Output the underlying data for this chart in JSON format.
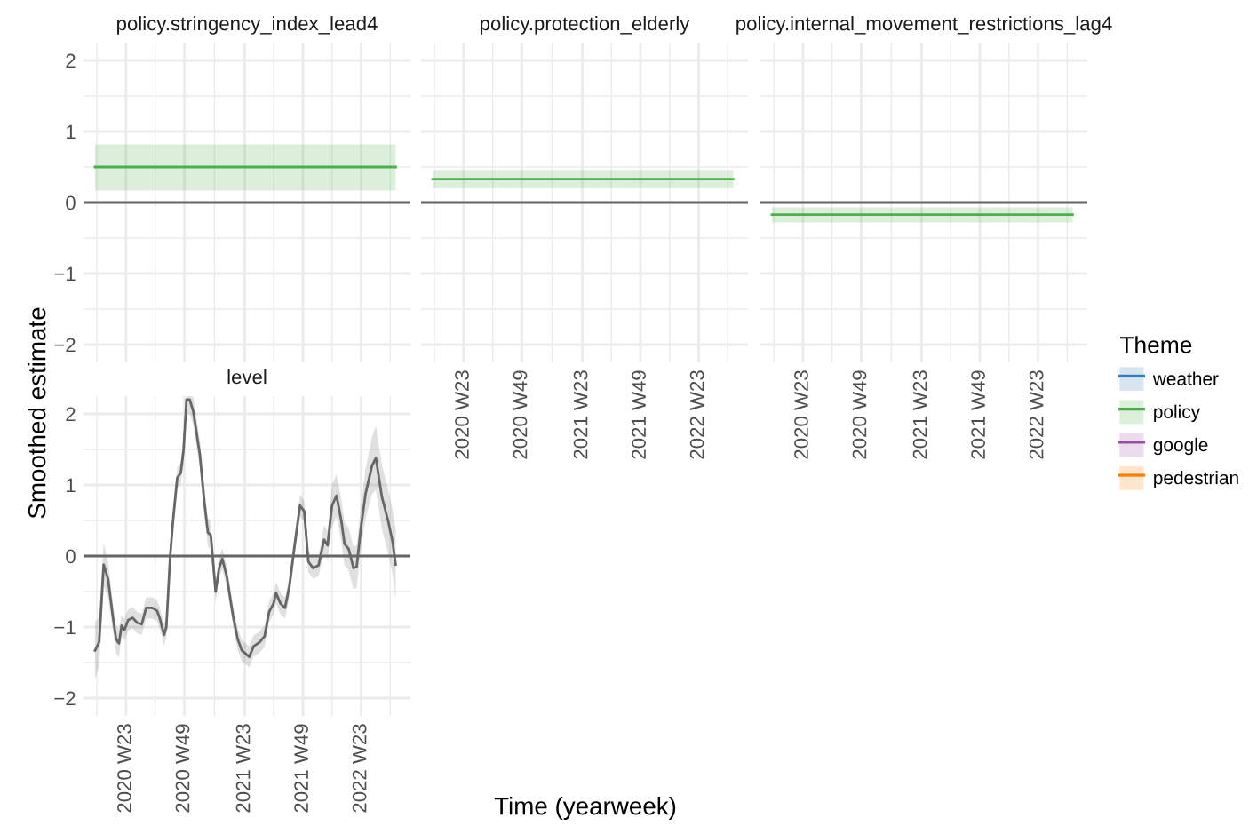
{
  "chart_data": [
    {
      "type": "line",
      "title": "policy.stringency_index_lead4",
      "xlim": [
        "2020-01-20",
        "2022-11-07"
      ],
      "ylim": [
        -2.25,
        2.25
      ],
      "xticks": [
        "2020-06-01",
        "2020-11-30",
        "2021-06-07",
        "2021-12-06",
        "2022-06-06"
      ],
      "yticks": [
        -2,
        -1,
        0,
        1,
        2
      ],
      "grid": true,
      "tick_labels": "y",
      "ref_lines": [
        {
          "axis": "y",
          "value": 0,
          "color": "#666666"
        }
      ],
      "series": [
        {
          "color": "#4daf4a",
          "x": [
            "2020-02-25",
            "2022-09-22"
          ],
          "values": [
            0.5,
            0.5
          ],
          "lower": [
            0.17,
            0.17
          ],
          "upper": [
            0.82,
            0.82
          ]
        }
      ]
    },
    {
      "type": "line",
      "title": "policy.protection_elderly",
      "xlim": [
        "2020-01-20",
        "2022-11-07"
      ],
      "ylim": [
        -2.25,
        2.25
      ],
      "xticks": [
        {
          "value": "2020-06-01",
          "label": "2020 W23"
        },
        {
          "value": "2020-11-30",
          "label": "2020 W49"
        },
        {
          "value": "2021-06-07",
          "label": "2021 W23"
        },
        {
          "value": "2021-12-06",
          "label": "2021 W49"
        },
        {
          "value": "2022-06-06",
          "label": "2022 W23"
        }
      ],
      "yticks": [
        -2,
        -1,
        0,
        1,
        2
      ],
      "grid": true,
      "tick_labels": "x",
      "ref_lines": [
        {
          "axis": "y",
          "value": 0,
          "color": "#666666"
        }
      ],
      "series": [
        {
          "color": "#4daf4a",
          "x": [
            "2020-02-25",
            "2022-09-22"
          ],
          "values": [
            0.33,
            0.33
          ],
          "lower": [
            0.2,
            0.2
          ],
          "upper": [
            0.46,
            0.46
          ]
        }
      ]
    },
    {
      "type": "line",
      "title": "policy.internal_movement_restrictions_lag4",
      "xlim": [
        "2020-01-20",
        "2022-11-07"
      ],
      "ylim": [
        -2.25,
        2.25
      ],
      "xticks": [
        {
          "value": "2020-06-01",
          "label": "2020 W23"
        },
        {
          "value": "2020-11-30",
          "label": "2020 W49"
        },
        {
          "value": "2021-06-07",
          "label": "2021 W23"
        },
        {
          "value": "2021-12-06",
          "label": "2021 W49"
        },
        {
          "value": "2022-06-06",
          "label": "2022 W23"
        }
      ],
      "yticks": [
        -2,
        -1,
        0,
        1,
        2
      ],
      "grid": true,
      "tick_labels": "x",
      "legend": "right",
      "legend_title": "Theme",
      "ref_lines": [
        {
          "axis": "y",
          "value": 0,
          "color": "#666666"
        }
      ],
      "series": [
        {
          "name": "weather",
          "color": "#377eb8",
          "values": [
            null,
            null
          ]
        },
        {
          "name": "policy",
          "color": "#4daf4a",
          "x": [
            "2020-02-25",
            "2022-09-22"
          ],
          "values": [
            -0.17,
            -0.17
          ],
          "lower": [
            -0.28,
            -0.28
          ],
          "upper": [
            -0.07,
            -0.07
          ]
        },
        {
          "name": "google",
          "color": "#984ea3",
          "values": [
            null,
            null
          ]
        },
        {
          "name": "pedestrian",
          "color": "#ff7f00",
          "values": [
            null,
            null
          ]
        }
      ]
    },
    {
      "type": "line",
      "title": "level",
      "xlabel": "Time (yearweek)",
      "ylabel": "Smoothed estimate",
      "xlim": [
        "2020-01-20",
        "2022-11-07"
      ],
      "ylim": [
        -2.25,
        2.25
      ],
      "xticks": [
        {
          "value": "2020-06-01",
          "label": "2020 W23"
        },
        {
          "value": "2020-11-30",
          "label": "2020 W49"
        },
        {
          "value": "2021-06-07",
          "label": "2021 W23"
        },
        {
          "value": "2021-12-06",
          "label": "2021 W49"
        },
        {
          "value": "2022-06-06",
          "label": "2022 W23"
        }
      ],
      "yticks": [
        -2,
        -1,
        0,
        1,
        2
      ],
      "grid": true,
      "ref_lines": [
        {
          "axis": "y",
          "value": 0,
          "color": "#666666"
        }
      ],
      "series": [
        {
          "color": "#666666",
          "x": [
            "2020-02-25",
            "2020-03-09",
            "2020-03-23",
            "2020-04-06",
            "2020-04-20",
            "2020-05-01",
            "2020-05-10",
            "2020-05-18",
            "2020-05-27",
            "2020-06-08",
            "2020-06-22",
            "2020-07-06",
            "2020-07-20",
            "2020-08-03",
            "2020-08-22",
            "2020-09-06",
            "2020-09-14",
            "2020-09-28",
            "2020-10-05",
            "2020-10-17",
            "2020-10-26",
            "2020-11-08",
            "2020-11-19",
            "2020-11-28",
            "2020-12-07",
            "2020-12-17",
            "2020-12-28",
            "2021-01-18",
            "2021-02-01",
            "2021-02-12",
            "2021-02-21",
            "2021-03-08",
            "2021-03-19",
            "2021-03-29",
            "2021-04-12",
            "2021-05-01",
            "2021-05-16",
            "2021-05-29",
            "2021-06-21",
            "2021-07-05",
            "2021-07-24",
            "2021-08-08",
            "2021-08-22",
            "2021-09-05",
            "2021-09-13",
            "2021-09-27",
            "2021-10-11",
            "2021-10-25",
            "2021-11-08",
            "2021-11-27",
            "2021-12-10",
            "2021-12-23",
            "2022-01-07",
            "2022-01-24",
            "2022-02-10",
            "2022-02-21",
            "2022-03-07",
            "2022-03-21",
            "2022-04-05",
            "2022-04-15",
            "2022-04-28",
            "2022-05-13",
            "2022-05-23",
            "2022-06-06",
            "2022-06-20",
            "2022-07-10",
            "2022-07-22",
            "2022-08-10",
            "2022-08-29",
            "2022-09-12",
            "2022-09-22"
          ],
          "values": [
            -1.33,
            -1.21,
            -0.12,
            -0.33,
            -0.83,
            -1.17,
            -1.23,
            -0.98,
            -1.04,
            -0.9,
            -0.87,
            -0.94,
            -0.96,
            -0.73,
            -0.73,
            -0.77,
            -0.87,
            -1.11,
            -1.0,
            0,
            0.5,
            1.1,
            1.17,
            1.5,
            2.2,
            2.2,
            2.04,
            1.42,
            0.75,
            0.33,
            0.29,
            -0.5,
            -0.17,
            -0.04,
            -0.29,
            -0.83,
            -1.17,
            -1.33,
            -1.42,
            -1.27,
            -1.21,
            -1.13,
            -0.79,
            -0.67,
            -0.52,
            -0.67,
            -0.73,
            -0.42,
            0.08,
            0.71,
            0.63,
            -0.08,
            -0.17,
            -0.13,
            0.23,
            0.15,
            0.71,
            0.85,
            0.5,
            0.17,
            0.1,
            -0.17,
            -0.15,
            0.42,
            0.88,
            1.27,
            1.38,
            0.83,
            0.5,
            0.21,
            -0.12
          ],
          "lower": [
            -1.73,
            -1.56,
            -0.42,
            -0.58,
            -1.03,
            -1.37,
            -1.43,
            -1.13,
            -1.19,
            -1.05,
            -1.02,
            -1.09,
            -1.11,
            -0.88,
            -0.88,
            -0.92,
            -1.02,
            -1.26,
            -1.15,
            -0.15,
            0.35,
            0.95,
            1.02,
            1.3,
            2.0,
            2.0,
            1.84,
            1.22,
            0.55,
            0.13,
            0.09,
            -0.65,
            -0.32,
            -0.19,
            -0.44,
            -0.98,
            -1.32,
            -1.48,
            -1.57,
            -1.42,
            -1.36,
            -1.28,
            -0.94,
            -0.82,
            -0.67,
            -0.82,
            -0.88,
            -0.57,
            -0.07,
            0.56,
            0.48,
            -0.23,
            -0.32,
            -0.28,
            0.03,
            -0.05,
            0.41,
            0.55,
            0.2,
            -0.13,
            -0.2,
            -0.47,
            -0.45,
            0.12,
            0.53,
            0.87,
            0.93,
            0.38,
            0.05,
            -0.24,
            -0.62
          ],
          "upper": [
            -0.93,
            -0.86,
            0.18,
            -0.08,
            -0.63,
            -0.97,
            -1.03,
            -0.83,
            -0.89,
            -0.75,
            -0.72,
            -0.79,
            -0.81,
            -0.58,
            -0.58,
            -0.62,
            -0.72,
            -0.96,
            -0.85,
            0.15,
            0.65,
            1.25,
            1.32,
            1.7,
            2.25,
            2.25,
            2.24,
            1.62,
            0.95,
            0.53,
            0.49,
            -0.35,
            -0.02,
            0.11,
            -0.14,
            -0.68,
            -1.02,
            -1.18,
            -1.27,
            -1.12,
            -1.06,
            -0.98,
            -0.64,
            -0.52,
            -0.37,
            -0.52,
            -0.58,
            -0.27,
            0.23,
            0.86,
            0.78,
            0.07,
            -0.02,
            0.02,
            0.43,
            0.35,
            1.01,
            1.15,
            0.8,
            0.47,
            0.4,
            0.13,
            0.15,
            0.72,
            1.23,
            1.67,
            1.83,
            1.28,
            0.95,
            0.66,
            0.38
          ]
        }
      ]
    }
  ]
}
